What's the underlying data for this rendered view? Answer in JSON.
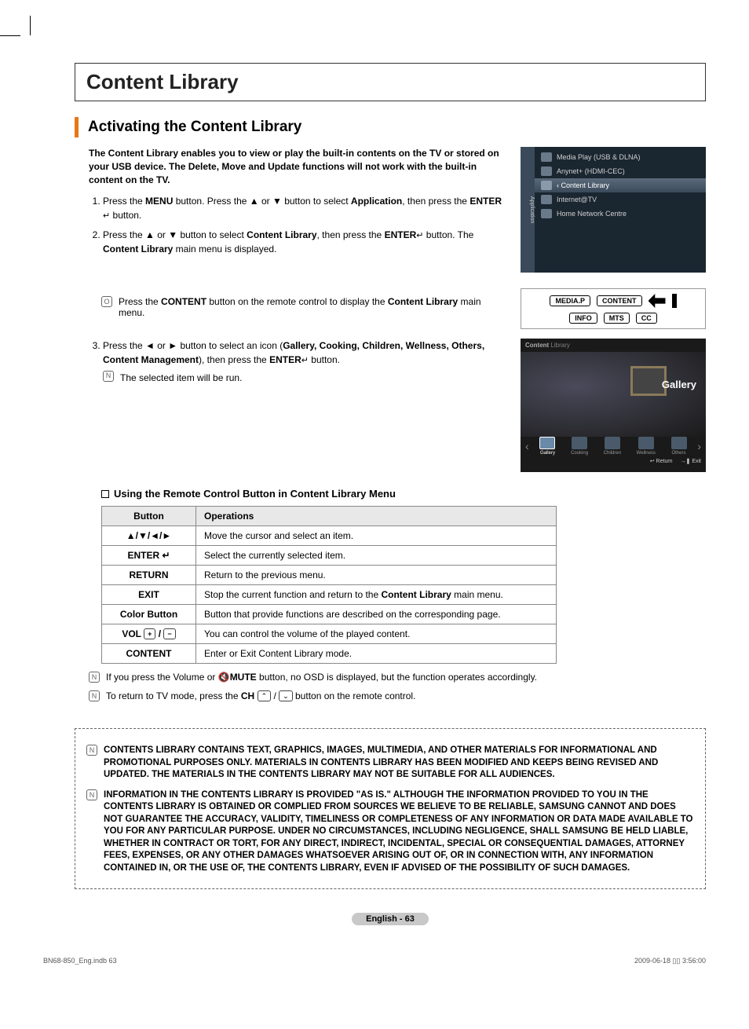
{
  "page_title": "Content Library",
  "section_title": "Activating the Content Library",
  "intro": "The Content Library enables you to view or play the built-in contents on the TV or stored on your USB device. The Delete, Move and Update functions will not work with the built-in content on the TV.",
  "steps": {
    "s1_pre": "Press the ",
    "s1_menu": "MENU",
    "s1_mid1": " button. Press the ▲ or ▼ button to select ",
    "s1_app": "Application",
    "s1_mid2": ", then press the  ",
    "s1_enter": "ENTER",
    "s1_icon": "↵",
    "s1_end": " button.",
    "s2_pre": "Press the ▲ or ▼ button to select ",
    "s2_cl": "Content Library",
    "s2_mid": ", then press the ",
    "s2_enter": "ENTER",
    "s2_icon": "↵",
    "s2_end": " button. The ",
    "s2_cl2": "Content Library",
    "s2_end2": " main menu is displayed.",
    "s3_pre": "Press the ◄ or ► button to select an icon (",
    "s3_list": "Gallery, Cooking, Children, Wellness, Others, Content Management",
    "s3_mid": "), then press the  ",
    "s3_enter": "ENTER",
    "s3_icon": "↵",
    "s3_end": " button.",
    "s3_note": "The selected item will be run."
  },
  "note_content_btn_pre": "Press the ",
  "note_content_btn_bold": "CONTENT",
  "note_content_btn_mid": " button on the remote control to display the ",
  "note_content_btn_bold2": "Content Library",
  "note_content_btn_end": " main menu.",
  "osd": {
    "sidebar": "Application",
    "items": [
      "Media Play (USB & DLNA)",
      "Anynet+ (HDMI-CEC)",
      "Content Library",
      "Internet@TV",
      "Home Network Centre"
    ],
    "selected_index": 2
  },
  "remote": {
    "row1": [
      "MEDIA.P",
      "CONTENT"
    ],
    "row2": [
      "INFO",
      "MTS",
      "CC"
    ]
  },
  "gallery": {
    "header": "Content Library",
    "title": "Gallery",
    "cats": [
      "Gallery",
      "Cooking",
      "Children",
      "Wellness",
      "Others"
    ],
    "footer_return": "↩ Return",
    "footer_exit": "→❚ Exit"
  },
  "table_section_title": "Using the Remote Control Button in Content Library Menu",
  "table": {
    "headers": [
      "Button",
      "Operations"
    ],
    "rows": [
      {
        "btn": "▲/▼/◄/►",
        "op": "Move the cursor and select an item."
      },
      {
        "btn": "ENTER ↵",
        "op": "Select the currently selected item."
      },
      {
        "btn": "RETURN",
        "op": "Return to the previous menu."
      },
      {
        "btn": "EXIT",
        "op_pre": "Stop the current function and return to the ",
        "op_bold": "Content Library",
        "op_post": " main menu."
      },
      {
        "btn": "Color Button",
        "op": "Button that provide functions are described on the corresponding page."
      },
      {
        "btn": "VOL",
        "btn_extra": "vol",
        "op": "You can control the volume of the played content."
      },
      {
        "btn": "CONTENT",
        "op": "Enter or Exit Content Library mode."
      }
    ]
  },
  "post_notes": {
    "n1_pre": "If you press the Volume or 🔇",
    "n1_bold": "MUTE",
    "n1_post": " button, no OSD is displayed, but the function operates accordingly.",
    "n2_pre": "To return to TV mode, press the ",
    "n2_bold": "CH",
    "n2_post": " button on the remote control."
  },
  "disclaimers": [
    "CONTENTS LIBRARY CONTAINS TEXT, GRAPHICS, IMAGES, MULTIMEDIA, AND OTHER MATERIALS FOR INFORMATIONAL AND PROMOTIONAL PURPOSES ONLY. MATERIALS IN CONTENTS LIBRARY HAS BEEN MODIFIED AND KEEPS BEING REVISED AND UPDATED.  THE MATERIALS IN THE CONTENTS LIBRARY MAY NOT BE SUITABLE FOR ALL AUDIENCES.",
    "INFORMATION IN THE CONTENTS LIBRARY IS PROVIDED \"AS IS.\" ALTHOUGH THE INFORMATION PROVIDED TO YOU IN THE CONTENTS LIBRARY IS OBTAINED OR COMPLIED FROM SOURCES WE BELIEVE TO BE RELIABLE, SAMSUNG CANNOT AND DOES NOT GUARANTEE THE ACCURACY, VALIDITY, TIMELINESS OR COMPLETENESS OF ANY INFORMATION OR DATA MADE AVAILABLE TO YOU FOR ANY PARTICULAR PURPOSE. UNDER NO CIRCUMSTANCES, INCLUDING NEGLIGENCE, SHALL SAMSUNG BE HELD LIABLE, WHETHER IN CONTRACT OR TORT, FOR ANY DIRECT, INDIRECT, INCIDENTAL, SPECIAL OR CONSEQUENTIAL DAMAGES, ATTORNEY FEES, EXPENSES, OR ANY OTHER DAMAGES WHATSOEVER ARISING OUT OF, OR IN CONNECTION WITH, ANY INFORMATION CONTAINED IN, OR THE USE OF, THE CONTENTS LIBRARY, EVEN IF ADVISED OF THE POSSIBILITY OF SUCH DAMAGES."
  ],
  "page_number": "English - 63",
  "doc_footer_left": "BN68-850_Eng.indb   63",
  "doc_footer_right": "2009-06-18   ▯▯ 3:56:00",
  "colors": {
    "accent": "#e67817",
    "osd_bg": "#1a2630",
    "gallery_bg": "#1a1a1a",
    "table_header_bg": "#e8e8e8",
    "pill_bg": "#c8c8c8"
  }
}
